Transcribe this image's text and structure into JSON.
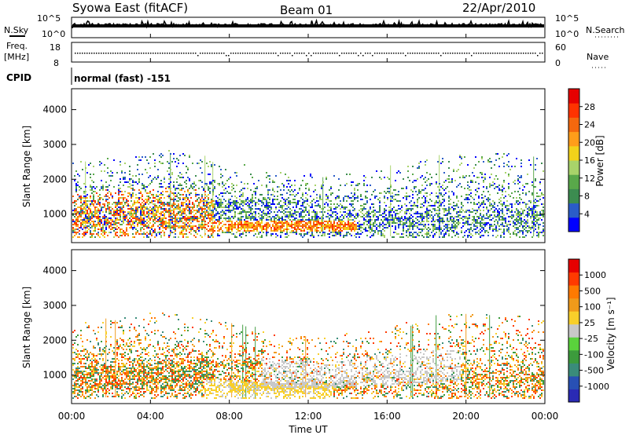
{
  "header": {
    "station": "Syowa East (fitACF)",
    "beam": "Beam 01",
    "date": "22/Apr/2010"
  },
  "top_panels": {
    "nsky_label": "N.Sky",
    "nsearch_label": "N.Search",
    "nsky_ticks": [
      "10^5",
      "10^0"
    ],
    "nsearch_ticks": [
      "10^5",
      "10^0"
    ],
    "freq_label": [
      "Freq.",
      "[MHz]"
    ],
    "freq_ticks": [
      "18",
      "8"
    ],
    "nave_label": "Nave",
    "nave_ticks": [
      "60",
      "0"
    ],
    "cpid_label": "CPID",
    "cpid_value": "normal (fast) -151"
  },
  "colors": {
    "power_scale": [
      "#0000ff",
      "#2a5cc8",
      "#3c8c50",
      "#59a84a",
      "#a8d36a",
      "#f2d21a",
      "#ff9d1a",
      "#f4680e",
      "#ff3300",
      "#e60000"
    ],
    "velocity_scale": [
      "#2a2ab4",
      "#2850b4",
      "#3a8c7a",
      "#3c9b3c",
      "#5ad23c",
      "#c8c8c8",
      "#f8cf2a",
      "#f09a1a",
      "#ff7a00",
      "#ff3a00",
      "#e60000"
    ]
  },
  "chart_data": [
    {
      "type": "heatmap",
      "name": "power",
      "ylabel": "Slant Range [km]",
      "ylim": [
        180,
        4600
      ],
      "yticks": [
        "1000",
        "2000",
        "3000",
        "4000"
      ],
      "colorbar_label": "Power [dB]",
      "colorbar_ticks": [
        "28",
        "24",
        "20",
        "16",
        "12",
        "8",
        "4"
      ],
      "clim": [
        0,
        32
      ],
      "xlim": [
        0,
        24
      ]
    },
    {
      "type": "heatmap",
      "name": "velocity",
      "ylabel": "Slant Range [km]",
      "ylim": [
        180,
        4600
      ],
      "yticks": [
        "1000",
        "2000",
        "3000",
        "4000"
      ],
      "colorbar_label": "Velocity [m s⁻¹]",
      "colorbar_ticks": [
        "1000",
        "500",
        "100",
        "25",
        "-25",
        "-100",
        "-500",
        "-1000"
      ],
      "xlim": [
        0,
        24
      ]
    }
  ],
  "xaxis": {
    "label": "Time UT",
    "ticks": [
      "00:00",
      "04:00",
      "08:00",
      "12:00",
      "16:00",
      "20:00",
      "00:00"
    ]
  }
}
